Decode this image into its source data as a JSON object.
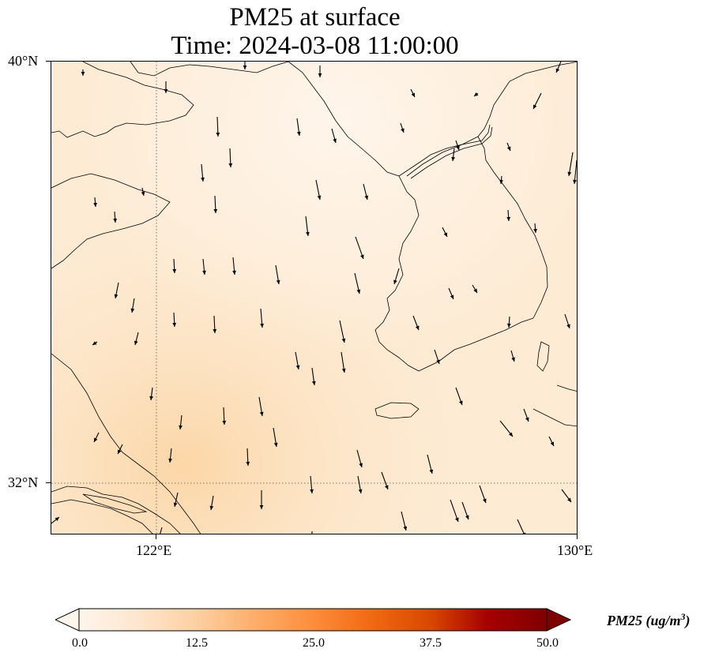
{
  "title": {
    "line1": "PM25 at surface",
    "line2": "Time: 2024-03-08 11:00:00"
  },
  "axes": {
    "lat_labels": [
      "40°N",
      "32°N"
    ],
    "lon_labels": [
      "122°E",
      "130°E"
    ]
  },
  "colorbar": {
    "label_prefix": "PM25 (ug/m",
    "label_exp": "3",
    "label_suffix": ")",
    "ticks": [
      "0.0",
      "12.5",
      "25.0",
      "37.5",
      "50.0"
    ],
    "colormap": [
      "#fff5eb",
      "#fee6ce",
      "#fdd0a2",
      "#fdae6b",
      "#fd8d3c",
      "#f16913",
      "#d94801",
      "#a50000",
      "#7f0000"
    ],
    "extend": "both"
  },
  "map": {
    "ocean_color": "#fdebd4",
    "land_color": "#fde8cf",
    "gridline_style": "dotted"
  }
}
